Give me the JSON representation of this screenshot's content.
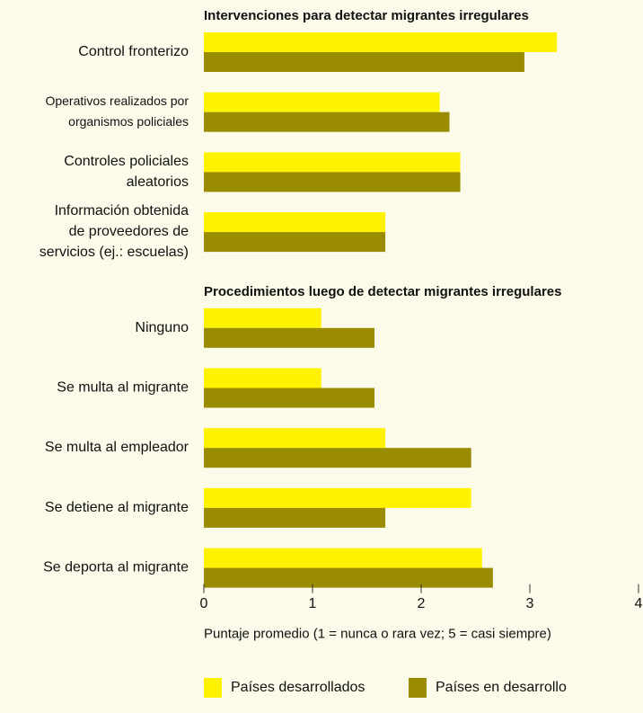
{
  "chart_data": {
    "type": "bar",
    "orientation": "horizontal",
    "series": [
      {
        "name": "Países desarrollados",
        "color": "#fff200"
      },
      {
        "name": "Países en desarrollo",
        "color": "#9a8c00"
      }
    ],
    "sections": [
      {
        "title": "Intervenciones para detectar migrantes irregulares",
        "categories": [
          "Control fronterizo",
          "Operativos realizados por\norganismos policiales",
          "Controles policiales\naleatorios",
          "Información obtenida\nde proveedores de\nservicios (ej.: escuelas)"
        ],
        "series": [
          {
            "values": [
              3.25,
              2.17,
              2.36,
              1.67
            ]
          },
          {
            "values": [
              2.95,
              2.26,
              2.36,
              1.67
            ]
          }
        ]
      },
      {
        "title": "Procedimientos luego de detectar migrantes irregulares",
        "categories": [
          "Ninguno",
          "Se multa al migrante",
          "Se multa al empleador",
          "Se detiene al migrante",
          "Se deporta al migrante"
        ],
        "series": [
          {
            "values": [
              1.08,
              1.08,
              1.67,
              2.46,
              2.56
            ]
          },
          {
            "values": [
              1.57,
              1.57,
              2.46,
              1.67,
              2.66
            ]
          }
        ]
      }
    ],
    "xlim": [
      0,
      4
    ],
    "xticks": [
      0,
      1,
      2,
      3,
      4
    ],
    "xlabel": "Puntaje promedio (1 = nunca o rara vez; 5 = casi siempre)"
  }
}
